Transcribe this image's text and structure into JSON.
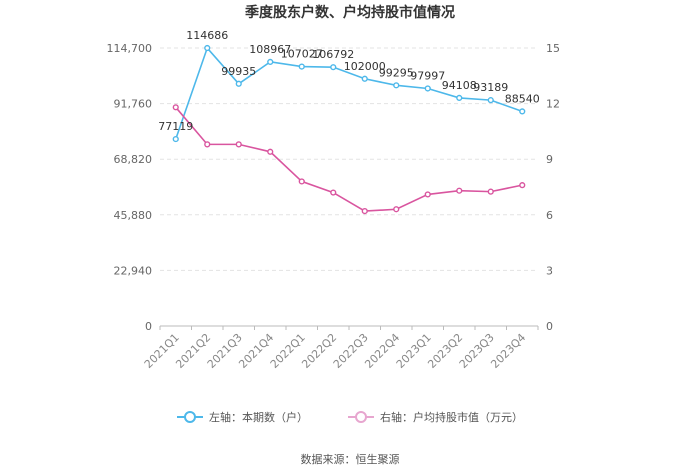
{
  "chart_data": {
    "type": "line",
    "title": "季度股东户数、户均持股市值情况",
    "categories": [
      "2021Q1",
      "2021Q2",
      "2021Q3",
      "2021Q4",
      "2022Q1",
      "2022Q2",
      "2022Q3",
      "2022Q4",
      "2023Q1",
      "2023Q2",
      "2023Q3",
      "2023Q4"
    ],
    "left_axis": {
      "ylim": [
        0,
        114700
      ],
      "ticks": [
        0,
        22940,
        45880,
        68820,
        91760,
        114700
      ],
      "tick_labels": [
        "0",
        "22,940",
        "45,880",
        "68,820",
        "91,760",
        "114,700"
      ]
    },
    "right_axis": {
      "ylim": [
        0,
        15
      ],
      "ticks": [
        0,
        3,
        6,
        9,
        12,
        15
      ],
      "tick_labels": [
        "0",
        "3",
        "6",
        "9",
        "12",
        "15"
      ]
    },
    "series": [
      {
        "name": "左轴：本期数（户）",
        "axis": "left",
        "color": "#4db8ea",
        "values": [
          77119,
          114686,
          99935,
          108967,
          107027,
          106792,
          102000,
          99295,
          97997,
          94108,
          93189,
          88540
        ],
        "labels": [
          "77119",
          "114686",
          "99935",
          "108967",
          "107027",
          "106792",
          "102000",
          "99295",
          "97997",
          "94108",
          "93189",
          "88540"
        ]
      },
      {
        "name": "右轴：户均持股市值（万元）",
        "axis": "right",
        "color": "#d9559f",
        "values": [
          11.8,
          9.8,
          9.8,
          9.4,
          7.8,
          7.2,
          6.2,
          6.3,
          7.1,
          7.3,
          7.25,
          7.6
        ]
      }
    ],
    "grid": true,
    "legend_position": "bottom"
  },
  "source_text": "数据来源：恒生聚源"
}
